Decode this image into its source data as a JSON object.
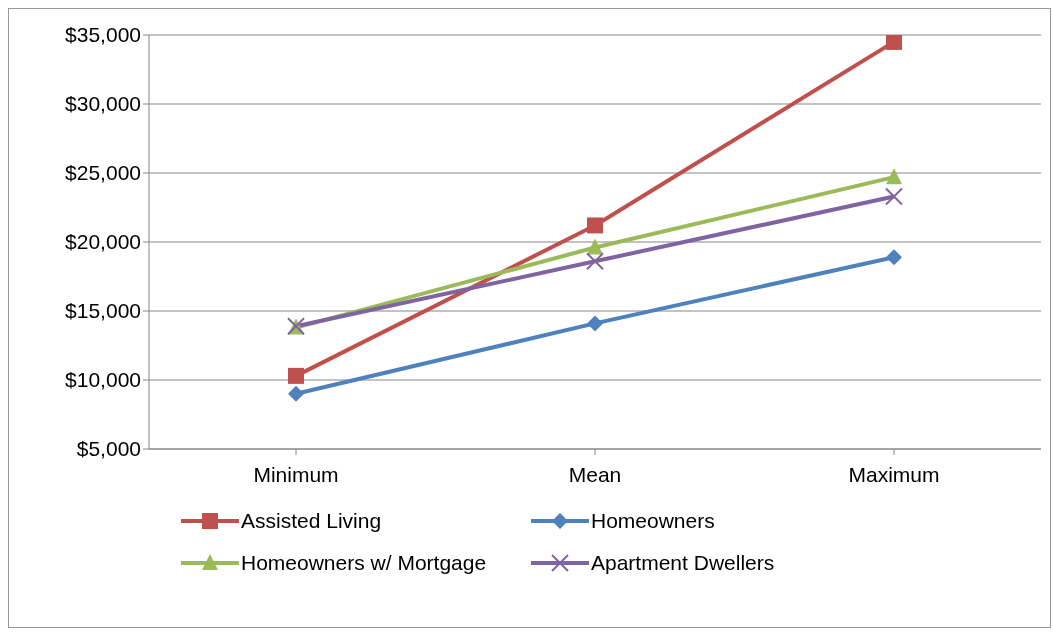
{
  "chart_data": {
    "type": "line",
    "categories": [
      "Minimum",
      "Mean",
      "Maximum"
    ],
    "series": [
      {
        "name": "Assisted Living",
        "color": "#c0504d",
        "marker": "square",
        "values": [
          10300,
          21200,
          34500
        ]
      },
      {
        "name": "Homeowners",
        "color": "#4f81bd",
        "marker": "diamond",
        "values": [
          9000,
          14100,
          18900
        ]
      },
      {
        "name": "Homeowners w/ Mortgage",
        "color": "#9bbb59",
        "marker": "triangle",
        "values": [
          13800,
          19600,
          24700
        ]
      },
      {
        "name": "Apartment Dwellers",
        "color": "#8064a2",
        "marker": "cross",
        "values": [
          13900,
          18600,
          23300
        ]
      }
    ],
    "ylim": [
      5000,
      35000
    ],
    "yticks": [
      {
        "value": 5000,
        "label": "$5,000"
      },
      {
        "value": 10000,
        "label": "$10,000"
      },
      {
        "value": 15000,
        "label": "$15,000"
      },
      {
        "value": 20000,
        "label": "$20,000"
      },
      {
        "value": 25000,
        "label": "$25,000"
      },
      {
        "value": 30000,
        "label": "$30,000"
      },
      {
        "value": 35000,
        "label": "$35,000"
      }
    ],
    "grid": "y",
    "legend": "bottom",
    "line_style": "solid"
  }
}
